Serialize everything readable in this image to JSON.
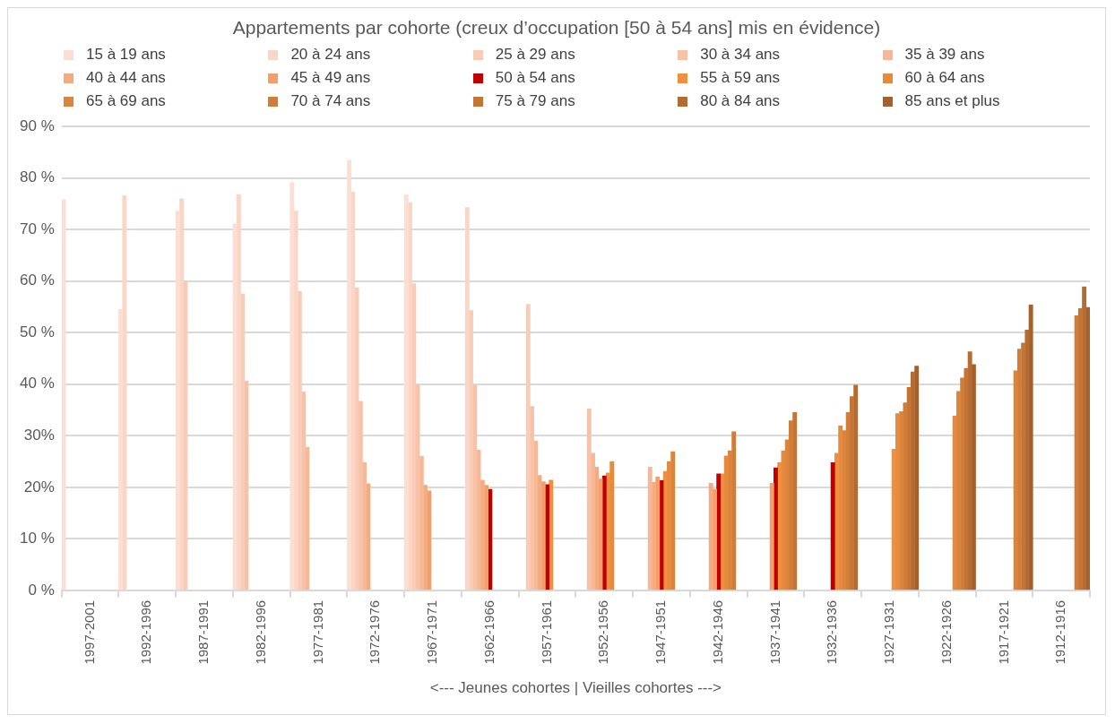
{
  "chart_data": {
    "type": "bar",
    "title": "Appartements par cohorte (creux d’occupation [50 à 54 ans] mis en évidence)",
    "xlabel": "<--- Jeunes cohortes | Vieilles cohortes --->",
    "categories": [
      "1997-2001",
      "1992-1996",
      "1987-1991",
      "1982-1996",
      "1977-1981",
      "1972-1976",
      "1967-1971",
      "1962-1966",
      "1957-1961",
      "1952-1956",
      "1947-1951",
      "1942-1946",
      "1937-1941",
      "1932-1936",
      "1927-1931",
      "1922-1926",
      "1917-1921",
      "1912-1916"
    ],
    "series": [
      {
        "name": "15 à 19 ans",
        "color": "#fcdfd2",
        "values": [
          75.8,
          54.5,
          73.6,
          71.1,
          79.1,
          83.4,
          76.7,
          null,
          null,
          null,
          null,
          null,
          null,
          null,
          null,
          null,
          null,
          null
        ]
      },
      {
        "name": "20 à 24 ans",
        "color": "#fbd6c6",
        "values": [
          null,
          76.6,
          76.0,
          76.8,
          73.6,
          77.3,
          75.2,
          74.3,
          null,
          null,
          null,
          null,
          null,
          null,
          null,
          null,
          null,
          null
        ]
      },
      {
        "name": "25 à 29 ans",
        "color": "#f9ccb7",
        "values": [
          null,
          null,
          60.0,
          57.5,
          58.0,
          58.7,
          59.5,
          54.3,
          55.5,
          null,
          null,
          null,
          null,
          null,
          null,
          null,
          null,
          null
        ]
      },
      {
        "name": "30 à 34 ans",
        "color": "#f8c2a7",
        "values": [
          null,
          null,
          null,
          40.6,
          38.5,
          36.7,
          39.8,
          39.8,
          35.7,
          35.2,
          null,
          null,
          null,
          null,
          null,
          null,
          null,
          null
        ]
      },
      {
        "name": "35 à 39 ans",
        "color": "#f6b896",
        "values": [
          null,
          null,
          null,
          null,
          27.8,
          24.8,
          26.0,
          27.2,
          29.0,
          26.6,
          23.9,
          null,
          null,
          null,
          null,
          null,
          null,
          null
        ]
      },
      {
        "name": "40 à 44 ans",
        "color": "#f4ab80",
        "values": [
          null,
          null,
          null,
          null,
          null,
          20.7,
          20.4,
          21.4,
          22.3,
          23.9,
          21.0,
          20.8,
          null,
          null,
          null,
          null,
          null,
          null
        ]
      },
      {
        "name": "45 à 49 ans",
        "color": "#f39f6c",
        "values": [
          null,
          null,
          null,
          null,
          null,
          null,
          19.3,
          20.4,
          21.1,
          21.6,
          22.0,
          19.6,
          20.8,
          null,
          null,
          null,
          null,
          null
        ]
      },
      {
        "name": "50 à 54 ans",
        "color": "#c00000",
        "values": [
          null,
          null,
          null,
          null,
          null,
          null,
          null,
          19.6,
          20.5,
          22.2,
          21.3,
          22.6,
          23.8,
          24.8,
          null,
          null,
          null,
          null
        ]
      },
      {
        "name": "55 à 59 ans",
        "color": "#ef9040",
        "values": [
          null,
          null,
          null,
          null,
          null,
          null,
          null,
          null,
          21.4,
          22.8,
          23.1,
          22.6,
          24.8,
          26.6,
          27.4,
          null,
          null,
          null
        ]
      },
      {
        "name": "60 à 64 ans",
        "color": "#e58a3f",
        "values": [
          null,
          null,
          null,
          null,
          null,
          null,
          null,
          null,
          null,
          25.0,
          25.0,
          26.1,
          27.1,
          31.9,
          34.3,
          33.8,
          null,
          null
        ]
      },
      {
        "name": "65 à 69 ans",
        "color": "#db843c",
        "values": [
          null,
          null,
          null,
          null,
          null,
          null,
          null,
          null,
          null,
          null,
          26.9,
          27.1,
          29.2,
          31.0,
          34.7,
          38.6,
          42.6,
          null
        ]
      },
      {
        "name": "70 à 74 ans",
        "color": "#d07d39",
        "values": [
          null,
          null,
          null,
          null,
          null,
          null,
          null,
          null,
          null,
          null,
          null,
          30.8,
          32.9,
          34.5,
          36.4,
          41.2,
          46.8,
          53.3
        ]
      },
      {
        "name": "75 à 79 ans",
        "color": "#c27536",
        "values": [
          null,
          null,
          null,
          null,
          null,
          null,
          null,
          null,
          null,
          null,
          null,
          null,
          34.5,
          37.6,
          39.4,
          43.1,
          48.0,
          54.7
        ]
      },
      {
        "name": "80 à 84 ans",
        "color": "#b56c32",
        "values": [
          null,
          null,
          null,
          null,
          null,
          null,
          null,
          null,
          null,
          null,
          null,
          null,
          null,
          39.8,
          42.4,
          46.3,
          50.5,
          58.9
        ]
      },
      {
        "name": "85 ans et plus",
        "color": "#a5612d",
        "values": [
          null,
          null,
          null,
          null,
          null,
          null,
          null,
          null,
          null,
          null,
          null,
          null,
          null,
          null,
          43.5,
          43.8,
          55.4,
          54.9
        ]
      }
    ],
    "ylim": [
      0,
      90
    ],
    "yticks": [
      {
        "value": 0,
        "label": "0 %"
      },
      {
        "value": 10,
        "label": "10 %"
      },
      {
        "value": 20,
        "label": "20%"
      },
      {
        "value": 30,
        "label": "30%"
      },
      {
        "value": 40,
        "label": "40 %"
      },
      {
        "value": 50,
        "label": "50 %"
      },
      {
        "value": 60,
        "label": "60 %"
      },
      {
        "value": 70,
        "label": "70 %"
      },
      {
        "value": 80,
        "label": "80 %"
      },
      {
        "value": 90,
        "label": "90 %"
      }
    ],
    "grid": "y",
    "legend": "top"
  }
}
